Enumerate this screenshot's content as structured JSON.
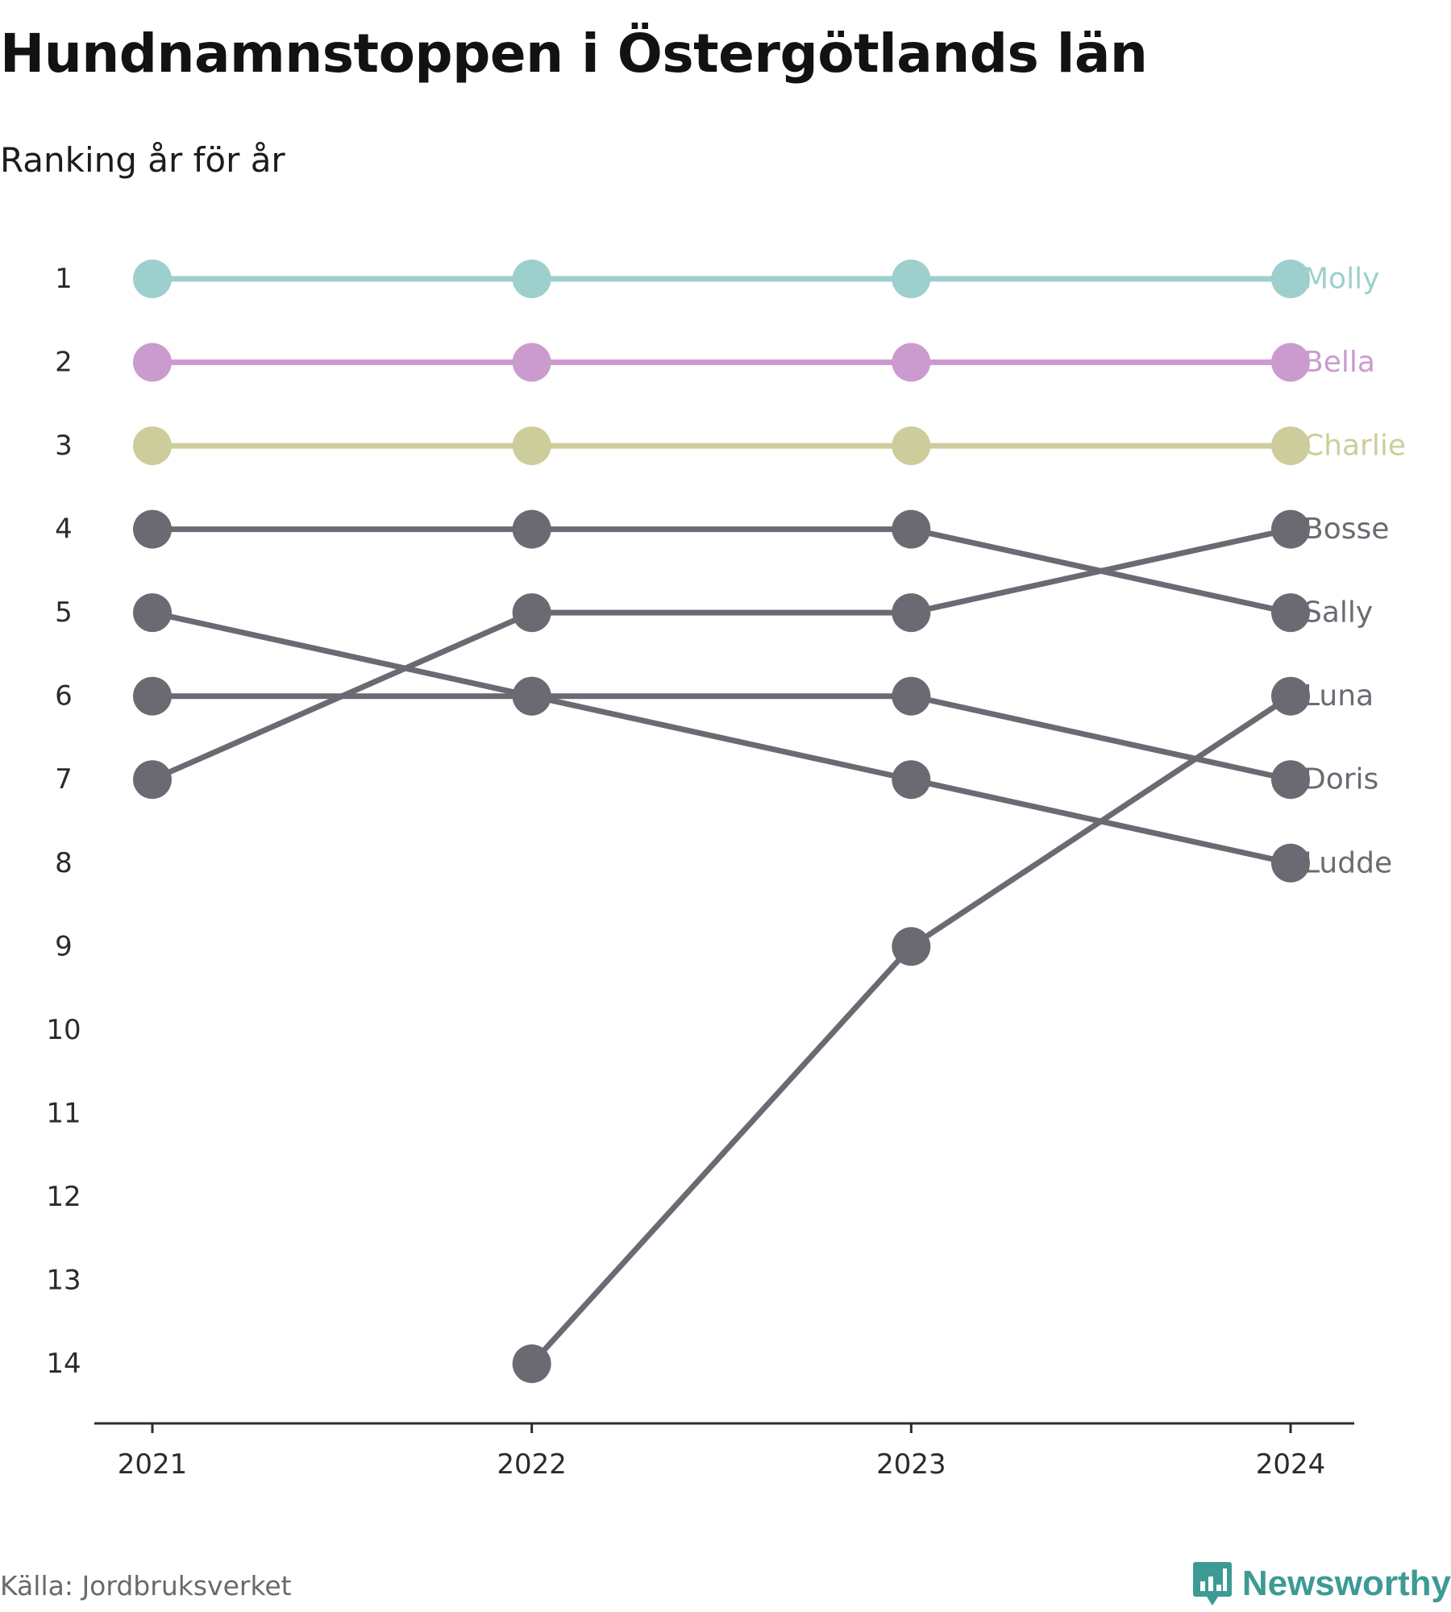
{
  "title": "Hundnamnstoppen i Östergötlands län",
  "subtitle": "Ranking år för år",
  "source": "Källa: Jordbruksverket",
  "brand": {
    "name": "Newsworthy",
    "icon": "newsworthy-logo-icon",
    "color": "#3d9a94"
  },
  "chart_data": {
    "type": "line",
    "chart_subtype": "bump",
    "title": "Hundnamnstoppen i Östergötlands län",
    "subtitle": "Ranking år för år",
    "xlabel": "",
    "ylabel": "",
    "x": [
      2021,
      2022,
      2023,
      2024
    ],
    "x_tick_labels": [
      "2021",
      "2022",
      "2023",
      "2024"
    ],
    "y_ticks": [
      1,
      2,
      3,
      4,
      5,
      6,
      7,
      8,
      9,
      10,
      11,
      12,
      13,
      14
    ],
    "y_tick_labels": [
      "1",
      "2",
      "3",
      "4",
      "5",
      "6",
      "7",
      "8",
      "9",
      "10",
      "11",
      "12",
      "13",
      "14"
    ],
    "ylim": [
      1,
      14
    ],
    "y_reversed": true,
    "grid": false,
    "legend": "direct labels at right end of lines",
    "default_color": "#6b6a72",
    "series": [
      {
        "name": "Molly",
        "values": [
          1,
          1,
          1,
          1
        ],
        "color": "#9dcfcd"
      },
      {
        "name": "Bella",
        "values": [
          2,
          2,
          2,
          2
        ],
        "color": "#cb9bcf"
      },
      {
        "name": "Charlie",
        "values": [
          3,
          3,
          3,
          3
        ],
        "color": "#cdcd9b"
      },
      {
        "name": "Bosse",
        "values": [
          7,
          5,
          5,
          4
        ],
        "color": "#6b6a72"
      },
      {
        "name": "Sally",
        "values": [
          4,
          4,
          4,
          5
        ],
        "color": "#6b6a72"
      },
      {
        "name": "Luna",
        "values": [
          null,
          14,
          9,
          6
        ],
        "color": "#6b6a72"
      },
      {
        "name": "Doris",
        "values": [
          6,
          6,
          6,
          7
        ],
        "color": "#6b6a72"
      },
      {
        "name": "Ludde",
        "values": [
          5,
          6,
          7,
          8
        ],
        "color": "#6b6a72"
      }
    ]
  }
}
